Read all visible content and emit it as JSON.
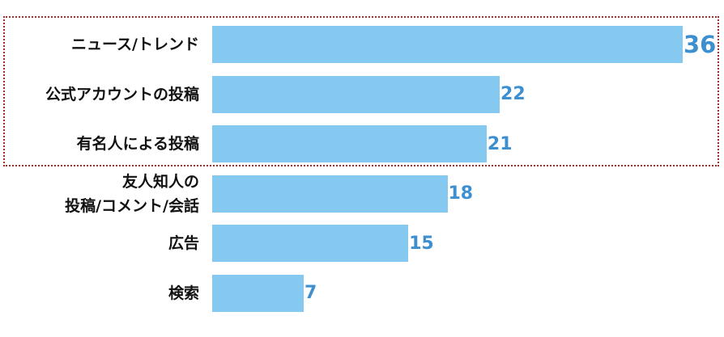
{
  "chart_data": {
    "type": "bar",
    "orientation": "horizontal",
    "categories": [
      "ニュース/トレンド",
      "公式アカウントの投稿",
      "有名人による投稿",
      "友人知人の\n投稿/コメント/会話",
      "広告",
      "検索"
    ],
    "values": [
      36,
      22,
      21,
      18,
      15,
      7
    ],
    "color": "#85c8f0",
    "label_color": "#3e8fd0"
  }
}
